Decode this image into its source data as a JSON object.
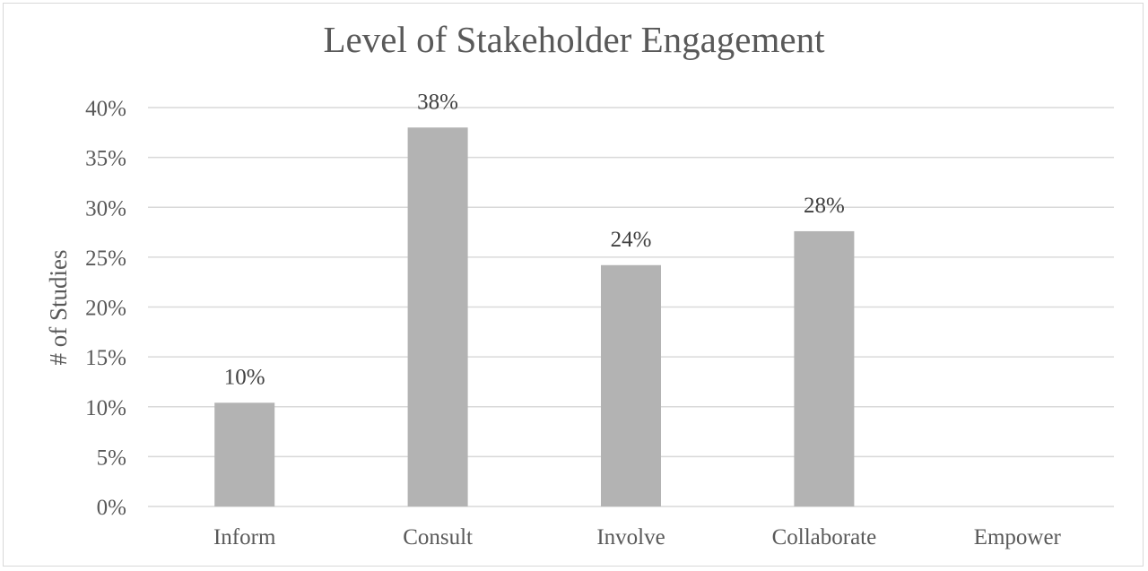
{
  "chart_data": {
    "type": "bar",
    "title": "Level of Stakeholder Engagement",
    "xlabel": "",
    "ylabel": "# of Studies",
    "categories": [
      "Inform",
      "Consult",
      "Involve",
      "Collaborate",
      "Empower"
    ],
    "values": [
      10.4,
      38.0,
      24.2,
      27.6,
      0
    ],
    "data_labels": [
      "10%",
      "38%",
      "24%",
      "28%",
      ""
    ],
    "y_ticks": [
      0,
      5,
      10,
      15,
      20,
      25,
      30,
      35,
      40
    ],
    "y_tick_labels": [
      "0%",
      "5%",
      "10%",
      "15%",
      "20%",
      "25%",
      "30%",
      "35%",
      "40%"
    ],
    "ylim": [
      0,
      40
    ],
    "grid": true,
    "legend": "none",
    "bar_color": "#b3b3b3"
  }
}
